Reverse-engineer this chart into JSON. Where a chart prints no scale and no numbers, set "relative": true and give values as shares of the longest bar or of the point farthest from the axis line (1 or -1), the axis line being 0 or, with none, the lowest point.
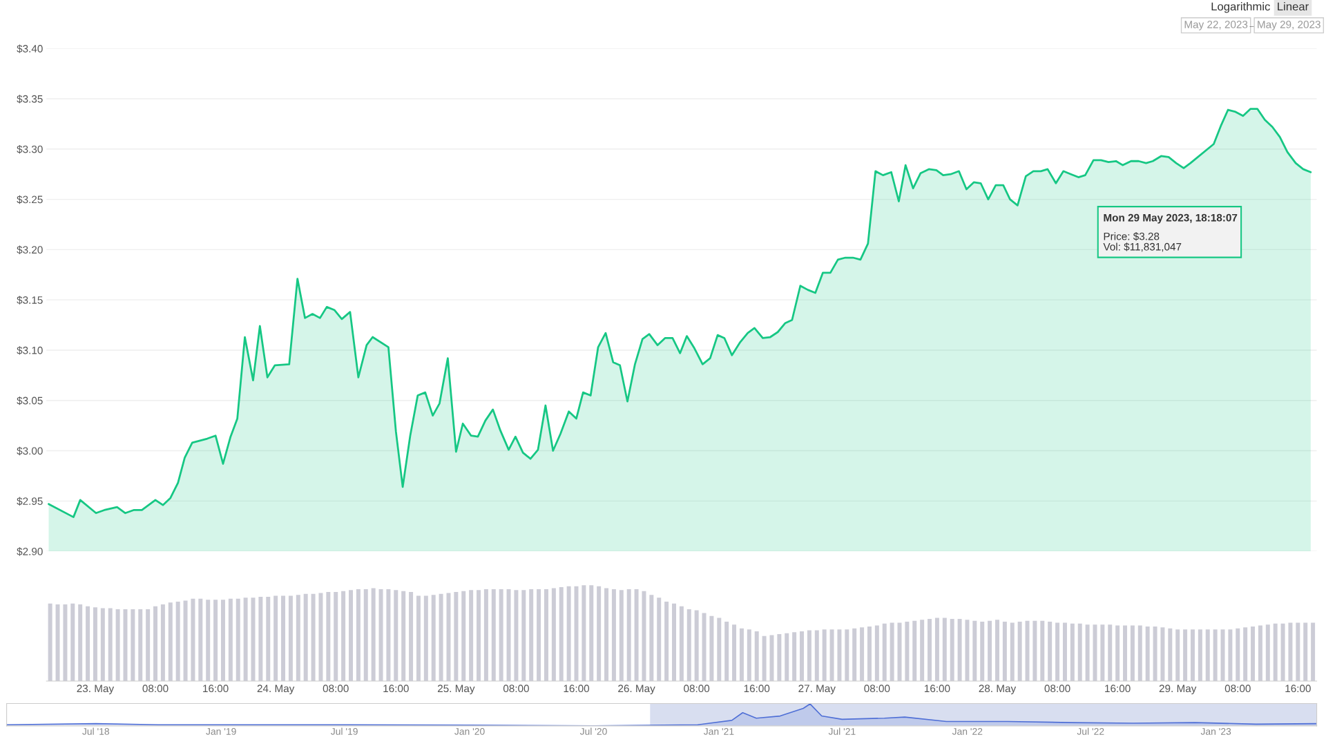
{
  "chart_data": [
    {
      "type": "area",
      "color": "#16c784",
      "grid": "y",
      "tick_labels": "y",
      "xlim": [
        "2023-05-22T17:30",
        "2023-05-29T18:30"
      ],
      "ylim": [
        2.9,
        3.4
      ],
      "yticks": [
        {
          "value": 2.9,
          "label": "$2.90"
        },
        {
          "value": 2.95,
          "label": "$2.95"
        },
        {
          "value": 3.0,
          "label": "$3.00"
        },
        {
          "value": 3.05,
          "label": "$3.05"
        },
        {
          "value": 3.1,
          "label": "$3.10"
        },
        {
          "value": 3.15,
          "label": "$3.15"
        },
        {
          "value": 3.2,
          "label": "$3.20"
        },
        {
          "value": 3.25,
          "label": "$3.25"
        },
        {
          "value": 3.3,
          "label": "$3.30"
        },
        {
          "value": 3.35,
          "label": "$3.35"
        },
        {
          "value": 3.4,
          "label": "$3.40"
        }
      ],
      "x": [
        "2023-05-22T17:48",
        "2023-05-22T21:06",
        "2023-05-22T22:00",
        "2023-05-23T00:06",
        "2023-05-23T01:12",
        "2023-05-23T02:54",
        "2023-05-23T04:00",
        "2023-05-23T05:06",
        "2023-05-23T06:12",
        "2023-05-23T08:00",
        "2023-05-23T09:00",
        "2023-05-23T10:00",
        "2023-05-23T11:00",
        "2023-05-23T11:54",
        "2023-05-23T12:54",
        "2023-05-23T14:54",
        "2023-05-23T16:00",
        "2023-05-23T17:00",
        "2023-05-23T18:00",
        "2023-05-23T18:54",
        "2023-05-23T19:54",
        "2023-05-23T21:00",
        "2023-05-23T21:54",
        "2023-05-23T22:54",
        "2023-05-23T23:54",
        "2023-05-24T01:48",
        "2023-05-24T02:54",
        "2023-05-24T03:54",
        "2023-05-24T04:54",
        "2023-05-24T05:54",
        "2023-05-24T06:48",
        "2023-05-24T07:48",
        "2023-05-24T08:48",
        "2023-05-24T09:54",
        "2023-05-24T11:00",
        "2023-05-24T12:06",
        "2023-05-24T12:54",
        "2023-05-24T15:00",
        "2023-05-24T16:00",
        "2023-05-24T16:54",
        "2023-05-24T17:54",
        "2023-05-24T18:54",
        "2023-05-24T19:54",
        "2023-05-24T20:54",
        "2023-05-24T21:48",
        "2023-05-24T22:54",
        "2023-05-25T00:00",
        "2023-05-25T00:54",
        "2023-05-25T02:00",
        "2023-05-25T02:54",
        "2023-05-25T03:54",
        "2023-05-25T04:54",
        "2023-05-25T05:54",
        "2023-05-25T07:00",
        "2023-05-25T07:54",
        "2023-05-25T08:54",
        "2023-05-25T09:54",
        "2023-05-25T10:54",
        "2023-05-25T11:54",
        "2023-05-25T12:54",
        "2023-05-25T13:54",
        "2023-05-25T15:00",
        "2023-05-25T16:00",
        "2023-05-25T16:54",
        "2023-05-25T17:54",
        "2023-05-25T18:54",
        "2023-05-25T19:54",
        "2023-05-25T20:54",
        "2023-05-25T21:48",
        "2023-05-25T22:48",
        "2023-05-25T23:48",
        "2023-05-26T00:48",
        "2023-05-26T01:42",
        "2023-05-26T02:48",
        "2023-05-26T03:48",
        "2023-05-26T04:48",
        "2023-05-26T05:48",
        "2023-05-26T06:42",
        "2023-05-26T07:42",
        "2023-05-26T08:48",
        "2023-05-26T09:48",
        "2023-05-26T10:48",
        "2023-05-26T11:42",
        "2023-05-26T12:42",
        "2023-05-26T13:48",
        "2023-05-26T14:48",
        "2023-05-26T15:42",
        "2023-05-26T16:48",
        "2023-05-26T17:48",
        "2023-05-26T18:48",
        "2023-05-26T19:48",
        "2023-05-26T20:42",
        "2023-05-26T21:48",
        "2023-05-26T22:48",
        "2023-05-26T23:48",
        "2023-05-27T00:48",
        "2023-05-27T01:48",
        "2023-05-27T02:48",
        "2023-05-27T03:48",
        "2023-05-27T04:48",
        "2023-05-27T05:48",
        "2023-05-27T06:48",
        "2023-05-27T07:48",
        "2023-05-27T08:48",
        "2023-05-27T09:54",
        "2023-05-27T10:54",
        "2023-05-27T11:48",
        "2023-05-27T12:48",
        "2023-05-27T13:48",
        "2023-05-27T14:54",
        "2023-05-27T15:54",
        "2023-05-27T16:48",
        "2023-05-27T17:48",
        "2023-05-27T18:54",
        "2023-05-27T19:54",
        "2023-05-27T20:54",
        "2023-05-27T21:48",
        "2023-05-27T22:48",
        "2023-05-27T23:48",
        "2023-05-28T00:48",
        "2023-05-28T01:42",
        "2023-05-28T02:42",
        "2023-05-28T03:48",
        "2023-05-28T04:48",
        "2023-05-28T05:48",
        "2023-05-28T06:42",
        "2023-05-28T07:48",
        "2023-05-28T08:48",
        "2023-05-28T09:48",
        "2023-05-28T10:48",
        "2023-05-28T11:42",
        "2023-05-28T12:48",
        "2023-05-28T13:48",
        "2023-05-28T14:48",
        "2023-05-28T15:48",
        "2023-05-28T16:42",
        "2023-05-28T17:48",
        "2023-05-28T18:48",
        "2023-05-28T19:48",
        "2023-05-28T20:42",
        "2023-05-28T21:48",
        "2023-05-28T22:48",
        "2023-05-28T23:48",
        "2023-05-29T00:48",
        "2023-05-29T01:42",
        "2023-05-29T04:48",
        "2023-05-29T05:48",
        "2023-05-29T06:42",
        "2023-05-29T07:42",
        "2023-05-29T08:42",
        "2023-05-29T09:42",
        "2023-05-29T10:36",
        "2023-05-29T11:36",
        "2023-05-29T12:36",
        "2023-05-29T13:36",
        "2023-05-29T14:36",
        "2023-05-29T15:42",
        "2023-05-29T16:42",
        "2023-05-29T17:42"
      ],
      "values": [
        2.947,
        2.934,
        2.951,
        2.938,
        2.941,
        2.944,
        2.938,
        2.941,
        2.941,
        2.951,
        2.946,
        2.953,
        2.968,
        2.993,
        3.008,
        3.012,
        3.015,
        2.987,
        3.014,
        3.032,
        3.113,
        3.07,
        3.124,
        3.073,
        3.085,
        3.086,
        3.171,
        3.132,
        3.136,
        3.132,
        3.143,
        3.14,
        3.131,
        3.138,
        3.073,
        3.105,
        3.113,
        3.103,
        3.019,
        2.964,
        3.015,
        3.055,
        3.058,
        3.035,
        3.047,
        3.092,
        2.999,
        3.027,
        3.015,
        3.014,
        3.03,
        3.041,
        3.02,
        3.001,
        3.014,
        2.998,
        2.992,
        3.001,
        3.045,
        3.0,
        3.017,
        3.039,
        3.032,
        3.058,
        3.055,
        3.103,
        3.117,
        3.088,
        3.085,
        3.049,
        3.086,
        3.111,
        3.116,
        3.105,
        3.112,
        3.112,
        3.097,
        3.114,
        3.102,
        3.086,
        3.092,
        3.115,
        3.112,
        3.095,
        3.108,
        3.117,
        3.122,
        3.112,
        3.113,
        3.118,
        3.127,
        3.13,
        3.164,
        3.16,
        3.157,
        3.177,
        3.177,
        3.19,
        3.192,
        3.192,
        3.19,
        3.206,
        3.278,
        3.274,
        3.277,
        3.248,
        3.284,
        3.261,
        3.276,
        3.28,
        3.279,
        3.274,
        3.275,
        3.278,
        3.26,
        3.267,
        3.266,
        3.25,
        3.264,
        3.264,
        3.25,
        3.244,
        3.273,
        3.278,
        3.278,
        3.28,
        3.266,
        3.278,
        3.275,
        3.272,
        3.274,
        3.289,
        3.289,
        3.287,
        3.288,
        3.284,
        3.288,
        3.288,
        3.286,
        3.288,
        3.293,
        3.292,
        3.286,
        3.281,
        3.286,
        3.305,
        3.324,
        3.339,
        3.337,
        3.333,
        3.34,
        3.34,
        3.329,
        3.322,
        3.312,
        3.297,
        3.286,
        3.28,
        3.277
      ],
      "annotations": [
        "Logarithmic",
        "Linear",
        "May 22, 2023",
        "→",
        "May 29, 2023",
        "Mon 29 May 2023, 18:18:07",
        "Price: $3.28",
        "Vol: $11,831,047"
      ]
    },
    {
      "type": "bar",
      "relative": true,
      "color": "#ccccd6",
      "tick_labels": "x",
      "xlim": [
        "2023-05-22T17:30",
        "2023-05-29T18:30"
      ],
      "xticks": [
        {
          "value": "2023-05-23T00:00",
          "label": "23. May"
        },
        {
          "value": "2023-05-23T08:00",
          "label": "08:00"
        },
        {
          "value": "2023-05-23T16:00",
          "label": "16:00"
        },
        {
          "value": "2023-05-24T00:00",
          "label": "24. May"
        },
        {
          "value": "2023-05-24T08:00",
          "label": "08:00"
        },
        {
          "value": "2023-05-24T16:00",
          "label": "16:00"
        },
        {
          "value": "2023-05-25T00:00",
          "label": "25. May"
        },
        {
          "value": "2023-05-25T08:00",
          "label": "08:00"
        },
        {
          "value": "2023-05-25T16:00",
          "label": "16:00"
        },
        {
          "value": "2023-05-26T00:00",
          "label": "26. May"
        },
        {
          "value": "2023-05-26T08:00",
          "label": "08:00"
        },
        {
          "value": "2023-05-26T16:00",
          "label": "16:00"
        },
        {
          "value": "2023-05-27T00:00",
          "label": "27. May"
        },
        {
          "value": "2023-05-27T08:00",
          "label": "08:00"
        },
        {
          "value": "2023-05-27T16:00",
          "label": "16:00"
        },
        {
          "value": "2023-05-28T00:00",
          "label": "28. May"
        },
        {
          "value": "2023-05-28T08:00",
          "label": "08:00"
        },
        {
          "value": "2023-05-28T16:00",
          "label": "16:00"
        },
        {
          "value": "2023-05-29T00:00",
          "label": "29. May"
        },
        {
          "value": "2023-05-29T08:00",
          "label": "08:00"
        },
        {
          "value": "2023-05-29T16:00",
          "label": "16:00"
        }
      ],
      "x": [
        "2023-05-22T18:00",
        "2023-05-22T19:00",
        "2023-05-22T20:00",
        "2023-05-22T21:00",
        "2023-05-22T22:00",
        "2023-05-22T23:00",
        "2023-05-23T00:00",
        "2023-05-23T01:00",
        "2023-05-23T02:00",
        "2023-05-23T03:00",
        "2023-05-23T04:00",
        "2023-05-23T05:00",
        "2023-05-23T06:00",
        "2023-05-23T07:00",
        "2023-05-23T08:00",
        "2023-05-23T09:00",
        "2023-05-23T10:00",
        "2023-05-23T11:00",
        "2023-05-23T12:00",
        "2023-05-23T13:00",
        "2023-05-23T14:00",
        "2023-05-23T15:00",
        "2023-05-23T16:00",
        "2023-05-23T17:00",
        "2023-05-23T18:00",
        "2023-05-23T19:00",
        "2023-05-23T20:00",
        "2023-05-23T21:00",
        "2023-05-23T22:00",
        "2023-05-23T23:00",
        "2023-05-24T00:00",
        "2023-05-24T01:00",
        "2023-05-24T02:00",
        "2023-05-24T03:00",
        "2023-05-24T04:00",
        "2023-05-24T05:00",
        "2023-05-24T06:00",
        "2023-05-24T07:00",
        "2023-05-24T08:00",
        "2023-05-24T09:00",
        "2023-05-24T10:00",
        "2023-05-24T11:00",
        "2023-05-24T12:00",
        "2023-05-24T13:00",
        "2023-05-24T14:00",
        "2023-05-24T15:00",
        "2023-05-24T16:00",
        "2023-05-24T17:00",
        "2023-05-24T18:00",
        "2023-05-24T19:00",
        "2023-05-24T20:00",
        "2023-05-24T21:00",
        "2023-05-24T22:00",
        "2023-05-24T23:00",
        "2023-05-25T00:00",
        "2023-05-25T01:00",
        "2023-05-25T02:00",
        "2023-05-25T03:00",
        "2023-05-25T04:00",
        "2023-05-25T05:00",
        "2023-05-25T06:00",
        "2023-05-25T07:00",
        "2023-05-25T08:00",
        "2023-05-25T09:00",
        "2023-05-25T10:00",
        "2023-05-25T11:00",
        "2023-05-25T12:00",
        "2023-05-25T13:00",
        "2023-05-25T14:00",
        "2023-05-25T15:00",
        "2023-05-25T16:00",
        "2023-05-25T17:00",
        "2023-05-25T18:00",
        "2023-05-25T19:00",
        "2023-05-25T20:00",
        "2023-05-25T21:00",
        "2023-05-25T22:00",
        "2023-05-25T23:00",
        "2023-05-26T00:00",
        "2023-05-26T01:00",
        "2023-05-26T02:00",
        "2023-05-26T03:00",
        "2023-05-26T04:00",
        "2023-05-26T05:00",
        "2023-05-26T06:00",
        "2023-05-26T07:00",
        "2023-05-26T08:00",
        "2023-05-26T09:00",
        "2023-05-26T10:00",
        "2023-05-26T11:00",
        "2023-05-26T12:00",
        "2023-05-26T13:00",
        "2023-05-26T14:00",
        "2023-05-26T15:00",
        "2023-05-26T16:00",
        "2023-05-26T17:00",
        "2023-05-26T18:00",
        "2023-05-26T19:00",
        "2023-05-26T20:00",
        "2023-05-26T21:00",
        "2023-05-26T22:00",
        "2023-05-26T23:00",
        "2023-05-27T00:00",
        "2023-05-27T01:00",
        "2023-05-27T02:00",
        "2023-05-27T03:00",
        "2023-05-27T04:00",
        "2023-05-27T05:00",
        "2023-05-27T06:00",
        "2023-05-27T07:00",
        "2023-05-27T08:00",
        "2023-05-27T09:00",
        "2023-05-27T10:00",
        "2023-05-27T11:00",
        "2023-05-27T12:00",
        "2023-05-27T13:00",
        "2023-05-27T14:00",
        "2023-05-27T15:00",
        "2023-05-27T16:00",
        "2023-05-27T17:00",
        "2023-05-27T18:00",
        "2023-05-27T19:00",
        "2023-05-27T20:00",
        "2023-05-27T21:00",
        "2023-05-27T22:00",
        "2023-05-27T23:00",
        "2023-05-28T00:00",
        "2023-05-28T01:00",
        "2023-05-28T02:00",
        "2023-05-28T03:00",
        "2023-05-28T04:00",
        "2023-05-28T05:00",
        "2023-05-28T06:00",
        "2023-05-28T07:00",
        "2023-05-28T08:00",
        "2023-05-28T09:00",
        "2023-05-28T10:00",
        "2023-05-28T11:00",
        "2023-05-28T12:00",
        "2023-05-28T13:00",
        "2023-05-28T14:00",
        "2023-05-28T15:00",
        "2023-05-28T16:00",
        "2023-05-28T17:00",
        "2023-05-28T18:00",
        "2023-05-28T19:00",
        "2023-05-28T20:00",
        "2023-05-28T21:00",
        "2023-05-28T22:00",
        "2023-05-28T23:00",
        "2023-05-29T00:00",
        "2023-05-29T01:00",
        "2023-05-29T02:00",
        "2023-05-29T03:00",
        "2023-05-29T04:00",
        "2023-05-29T05:00",
        "2023-05-29T06:00",
        "2023-05-29T07:00",
        "2023-05-29T08:00",
        "2023-05-29T09:00",
        "2023-05-29T10:00",
        "2023-05-29T11:00",
        "2023-05-29T12:00",
        "2023-05-29T13:00",
        "2023-05-29T14:00",
        "2023-05-29T15:00",
        "2023-05-29T16:00",
        "2023-05-29T17:00",
        "2023-05-29T18:00"
      ],
      "values": [
        0.81,
        0.8,
        0.8,
        0.81,
        0.8,
        0.78,
        0.77,
        0.76,
        0.76,
        0.75,
        0.75,
        0.75,
        0.75,
        0.75,
        0.78,
        0.8,
        0.82,
        0.83,
        0.84,
        0.86,
        0.86,
        0.85,
        0.85,
        0.85,
        0.86,
        0.86,
        0.87,
        0.87,
        0.88,
        0.88,
        0.89,
        0.89,
        0.89,
        0.9,
        0.91,
        0.91,
        0.92,
        0.93,
        0.93,
        0.94,
        0.95,
        0.96,
        0.96,
        0.97,
        0.96,
        0.96,
        0.95,
        0.94,
        0.93,
        0.89,
        0.89,
        0.9,
        0.91,
        0.92,
        0.93,
        0.94,
        0.95,
        0.95,
        0.96,
        0.96,
        0.96,
        0.96,
        0.95,
        0.95,
        0.96,
        0.96,
        0.96,
        0.97,
        0.98,
        0.99,
        0.99,
        1,
        1,
        0.99,
        0.97,
        0.96,
        0.95,
        0.96,
        0.96,
        0.94,
        0.9,
        0.87,
        0.83,
        0.81,
        0.78,
        0.75,
        0.74,
        0.71,
        0.68,
        0.66,
        0.62,
        0.59,
        0.55,
        0.54,
        0.52,
        0.47,
        0.48,
        0.49,
        0.5,
        0.51,
        0.52,
        0.53,
        0.53,
        0.54,
        0.54,
        0.54,
        0.54,
        0.55,
        0.56,
        0.57,
        0.58,
        0.6,
        0.61,
        0.61,
        0.62,
        0.63,
        0.64,
        0.65,
        0.66,
        0.66,
        0.65,
        0.65,
        0.64,
        0.63,
        0.62,
        0.63,
        0.64,
        0.62,
        0.61,
        0.62,
        0.63,
        0.63,
        0.63,
        0.62,
        0.61,
        0.61,
        0.6,
        0.6,
        0.59,
        0.59,
        0.59,
        0.59,
        0.58,
        0.58,
        0.58,
        0.58,
        0.57,
        0.57,
        0.56,
        0.55,
        0.54,
        0.54,
        0.54,
        0.54,
        0.54,
        0.54,
        0.54,
        0.54,
        0.55,
        0.56,
        0.57,
        0.58,
        0.59,
        0.6,
        0.6,
        0.61,
        0.61,
        0.61,
        0.61
      ]
    },
    {
      "type": "area",
      "relative": true,
      "color": "#4f6fd6",
      "tick_labels": "x",
      "xlim": [
        "2018-02-20",
        "2023-05-29"
      ],
      "xticks": [
        {
          "value": "2018-07-01",
          "label": "Jul '18"
        },
        {
          "value": "2019-01-01",
          "label": "Jan '19"
        },
        {
          "value": "2019-07-01",
          "label": "Jul '19"
        },
        {
          "value": "2020-01-01",
          "label": "Jan '20"
        },
        {
          "value": "2020-07-01",
          "label": "Jul '20"
        },
        {
          "value": "2021-01-01",
          "label": "Jan '21"
        },
        {
          "value": "2021-07-01",
          "label": "Jul '21"
        },
        {
          "value": "2022-01-01",
          "label": "Jan '22"
        },
        {
          "value": "2022-07-01",
          "label": "Jul '22"
        },
        {
          "value": "2023-01-01",
          "label": "Jan '23"
        }
      ],
      "x": [
        "2018-02-20",
        "2018-07-01",
        "2018-10-01",
        "2019-01-01",
        "2019-07-01",
        "2020-01-01",
        "2020-07-01",
        "2020-12-01",
        "2021-01-20",
        "2021-02-05",
        "2021-02-25",
        "2021-04-01",
        "2021-05-05",
        "2021-05-15",
        "2021-06-01",
        "2021-07-01",
        "2021-09-01",
        "2021-10-01",
        "2021-12-01",
        "2022-03-01",
        "2022-06-01",
        "2022-09-01",
        "2022-12-01",
        "2023-03-01",
        "2023-05-29"
      ],
      "values": [
        0.05,
        0.1,
        0.05,
        0.05,
        0.05,
        0.03,
        0,
        0.05,
        0.25,
        0.6,
        0.35,
        0.45,
        0.8,
        1.0,
        0.45,
        0.3,
        0.35,
        0.4,
        0.2,
        0.2,
        0.15,
        0.12,
        0.15,
        0.08,
        0.1
      ],
      "bands": [
        {
          "axis": "x",
          "from": "2020-09-22",
          "to": "2023-05-29",
          "color": "#d8def0"
        }
      ]
    }
  ]
}
